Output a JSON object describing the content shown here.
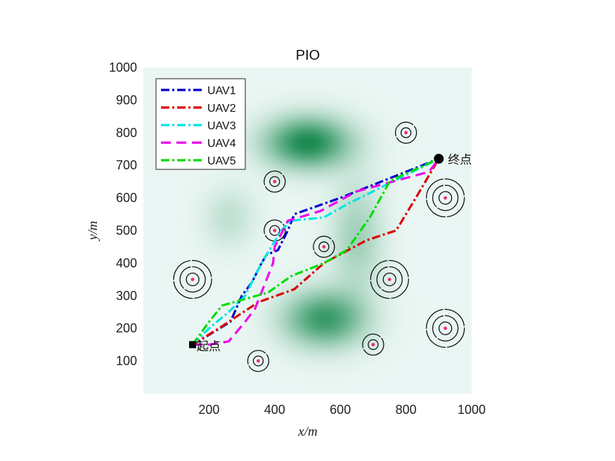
{
  "chart_data": {
    "type": "line",
    "title": "PIO",
    "xlabel": "x/m",
    "ylabel": "y/m",
    "xlim": [
      0,
      1000
    ],
    "ylim": [
      0,
      1000
    ],
    "xticks": [
      200,
      400,
      600,
      800,
      1000
    ],
    "yticks": [
      100,
      200,
      300,
      400,
      500,
      600,
      700,
      800,
      900,
      1000
    ],
    "legend_position": "top-left",
    "background_color": "#eaf6f3",
    "terrain_color": "#1a8a50",
    "start": {
      "label": "起点",
      "x": 150,
      "y": 150
    },
    "end": {
      "label": "终点",
      "x": 900,
      "y": 720
    },
    "terrain_peaks": [
      {
        "x": 500,
        "y": 770,
        "sx": 90,
        "sy": 55,
        "strength": 1.0
      },
      {
        "x": 550,
        "y": 230,
        "sx": 85,
        "sy": 60,
        "strength": 0.85
      },
      {
        "x": 650,
        "y": 480,
        "sx": 55,
        "sy": 120,
        "strength": 0.35
      },
      {
        "x": 260,
        "y": 540,
        "sx": 55,
        "sy": 65,
        "strength": 0.2
      }
    ],
    "threats": [
      {
        "x": 150,
        "y": 350,
        "rings": 3
      },
      {
        "x": 350,
        "y": 100,
        "rings": 2
      },
      {
        "x": 400,
        "y": 650,
        "rings": 2
      },
      {
        "x": 400,
        "y": 500,
        "rings": 2
      },
      {
        "x": 550,
        "y": 450,
        "rings": 2
      },
      {
        "x": 750,
        "y": 350,
        "rings": 3
      },
      {
        "x": 700,
        "y": 150,
        "rings": 2
      },
      {
        "x": 800,
        "y": 800,
        "rings": 2
      },
      {
        "x": 920,
        "y": 600,
        "rings": 3
      },
      {
        "x": 920,
        "y": 200,
        "rings": 3
      }
    ],
    "series": [
      {
        "name": "UAV1",
        "color": "#0000cc",
        "dash": "dashdot",
        "x": [
          150,
          200,
          265,
          300,
          330,
          360,
          375,
          410,
          420,
          440,
          460,
          600,
          700,
          800,
          900
        ],
        "y": [
          150,
          180,
          220,
          300,
          340,
          400,
          425,
          440,
          460,
          500,
          550,
          600,
          640,
          680,
          720
        ]
      },
      {
        "name": "UAV2",
        "color": "#dd0000",
        "dash": "dashdot",
        "x": [
          150,
          230,
          350,
          460,
          550,
          680,
          770,
          830,
          900
        ],
        "y": [
          150,
          200,
          280,
          320,
          400,
          470,
          500,
          600,
          720
        ]
      },
      {
        "name": "UAV3",
        "color": "#00e5e5",
        "dash": "dashdot",
        "x": [
          150,
          200,
          260,
          310,
          360,
          420,
          450,
          550,
          620,
          700,
          900
        ],
        "y": [
          150,
          200,
          250,
          300,
          400,
          500,
          530,
          540,
          580,
          620,
          720
        ]
      },
      {
        "name": "UAV4",
        "color": "#ee00ee",
        "dash": "dash",
        "x": [
          150,
          200,
          260,
          310,
          340,
          395,
          400,
          440,
          540,
          650,
          870,
          900
        ],
        "y": [
          150,
          150,
          160,
          220,
          260,
          400,
          450,
          530,
          560,
          620,
          680,
          720
        ]
      },
      {
        "name": "UAV5",
        "color": "#00dd00",
        "dash": "dashdot",
        "x": [
          150,
          200,
          240,
          380,
          450,
          550,
          620,
          690,
          750,
          790,
          900
        ],
        "y": [
          150,
          220,
          270,
          310,
          360,
          400,
          440,
          540,
          650,
          670,
          720
        ]
      }
    ]
  }
}
